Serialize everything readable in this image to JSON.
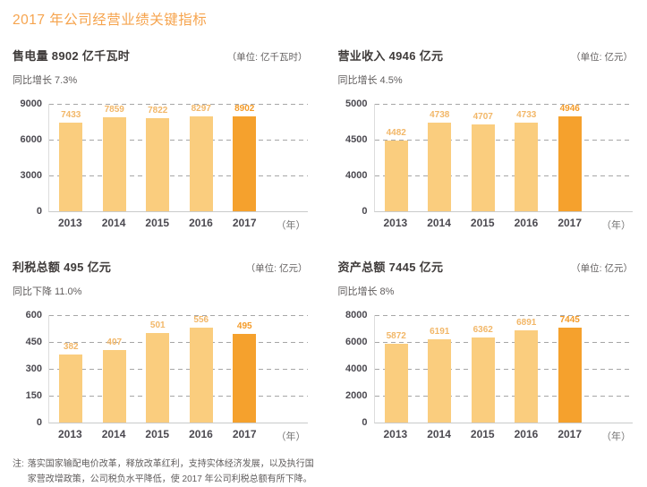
{
  "page": {
    "title": "2017 年公司经营业绩关键指标"
  },
  "note": {
    "prefix": "注:",
    "line1": "落实国家输配电价改革，释放改革红利，支持实体经济发展，以及执行国",
    "line2": "家营改增政策，公司税负水平降低，使 2017 年公司利税总额有所下降。"
  },
  "colors": {
    "accent": "#F6A44E",
    "bar_light": "#FACD7E",
    "bar_highlight": "#F5A12D",
    "value_label_light": "#F2B768",
    "value_label_highlight": "#F49B28",
    "text_dark": "#3F3B3A",
    "text_gray": "#605D5D",
    "tick_text": "#4B4950",
    "gridline": "#A6A6A6",
    "axis_line": "#C9CACA",
    "year_suffix": "#727171"
  },
  "chart_data": [
    {
      "type": "bar",
      "title": "售电量 8902 亿千瓦时",
      "unit": "（单位: 亿千瓦时）",
      "subtitle": "同比增长 7.3%",
      "categories": [
        "2013",
        "2014",
        "2015",
        "2016",
        "2017"
      ],
      "values": [
        7433,
        7859,
        7822,
        8297,
        8902
      ],
      "yticks": [
        0,
        3000,
        6000,
        9000
      ],
      "ylim": [
        0,
        9000
      ],
      "x_suffix": "（年）",
      "highlight_index": 4,
      "grid": "dashed-horizontal",
      "legend": "none"
    },
    {
      "type": "bar",
      "title": "营业收入 4946 亿元",
      "unit": "（单位: 亿元）",
      "subtitle": "同比增长 4.5%",
      "categories": [
        "2013",
        "2014",
        "2015",
        "2016",
        "2017"
      ],
      "values": [
        4482,
        4738,
        4707,
        4733,
        4946
      ],
      "yticks": [
        0,
        4000,
        4500,
        5000
      ],
      "ylim": [
        0,
        5000
      ],
      "axis_break": "between 0 and 4000",
      "x_suffix": "（年）",
      "highlight_index": 4,
      "grid": "dashed-horizontal",
      "legend": "none"
    },
    {
      "type": "bar",
      "title": "利税总额 495 亿元",
      "unit": "（单位: 亿元）",
      "subtitle": "同比下降 11.0%",
      "categories": [
        "2013",
        "2014",
        "2015",
        "2016",
        "2017"
      ],
      "values": [
        382,
        407,
        501,
        556,
        495
      ],
      "yticks": [
        0,
        150,
        300,
        450,
        600
      ],
      "ylim": [
        0,
        600
      ],
      "x_suffix": "（年）",
      "highlight_index": 4,
      "grid": "dashed-horizontal",
      "legend": "none"
    },
    {
      "type": "bar",
      "title": "资产总额 7445 亿元",
      "unit": "（单位: 亿元）",
      "subtitle": "同比增长 8%",
      "categories": [
        "2013",
        "2014",
        "2015",
        "2016",
        "2017"
      ],
      "values": [
        5872,
        6191,
        6362,
        6891,
        7445
      ],
      "yticks": [
        0,
        2000,
        4000,
        6000,
        8000
      ],
      "ylim": [
        0,
        8000
      ],
      "x_suffix": "（年）",
      "highlight_index": 4,
      "grid": "dashed-horizontal",
      "legend": "none"
    }
  ]
}
